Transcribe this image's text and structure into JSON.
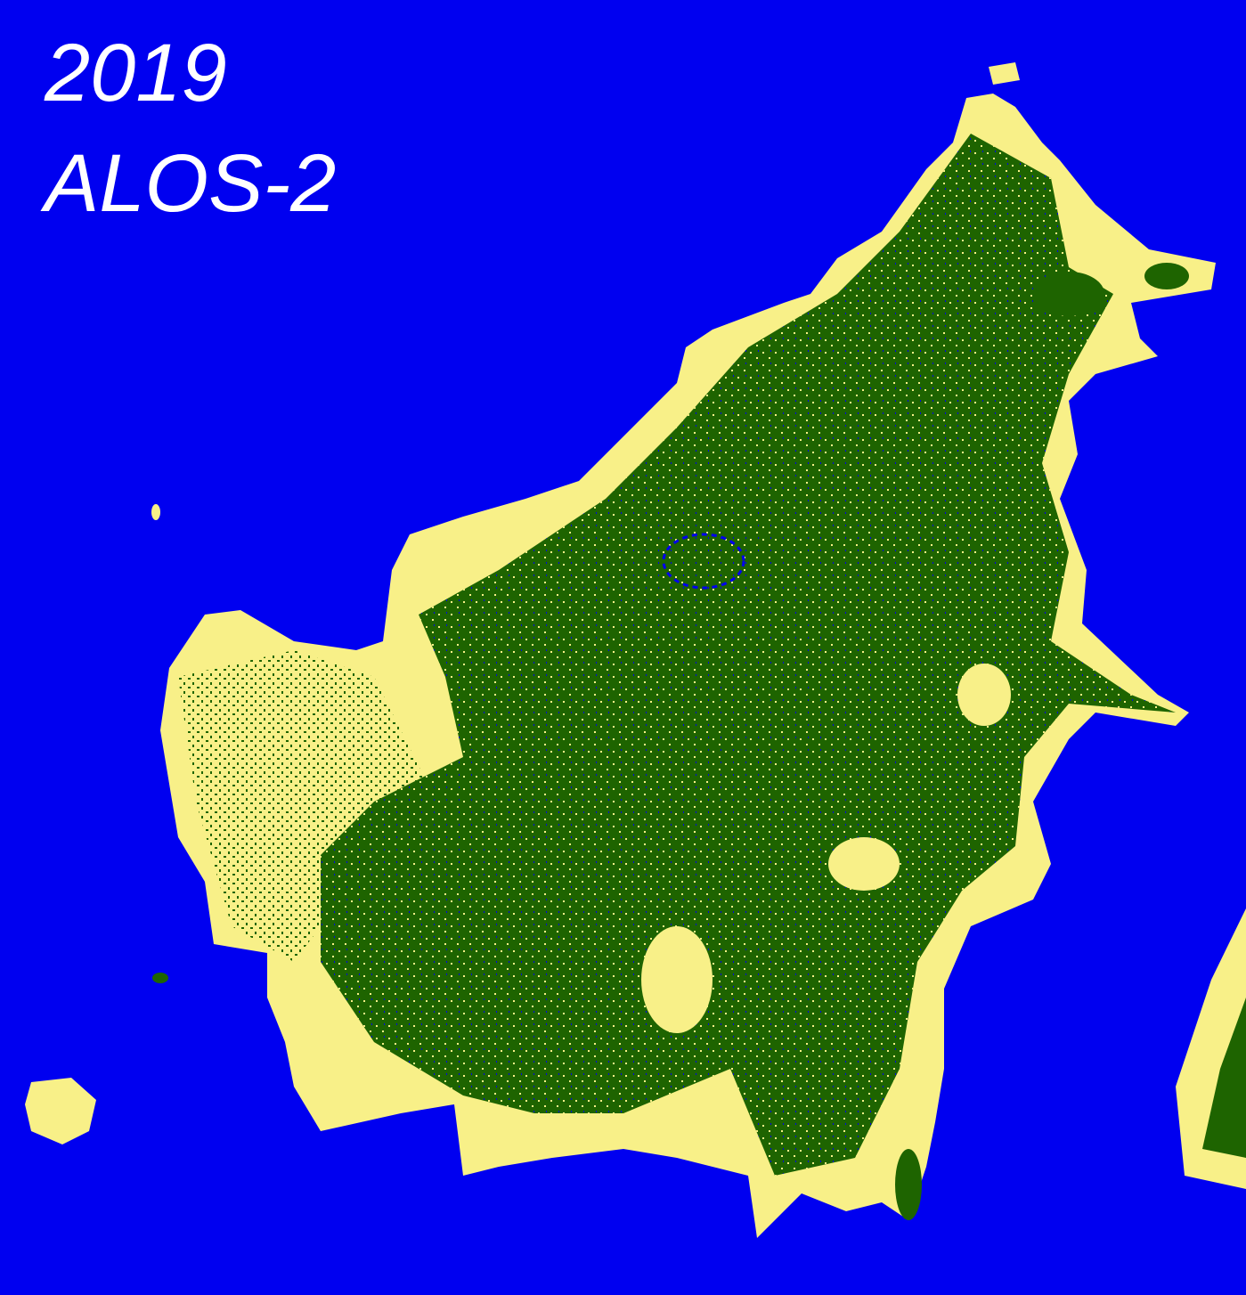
{
  "title": {
    "year": "2019",
    "sensor": "ALOS-2"
  },
  "legend_colors": {
    "water": "#0000f0",
    "non_forest": "#f8f088",
    "forest": "#1e6400"
  }
}
